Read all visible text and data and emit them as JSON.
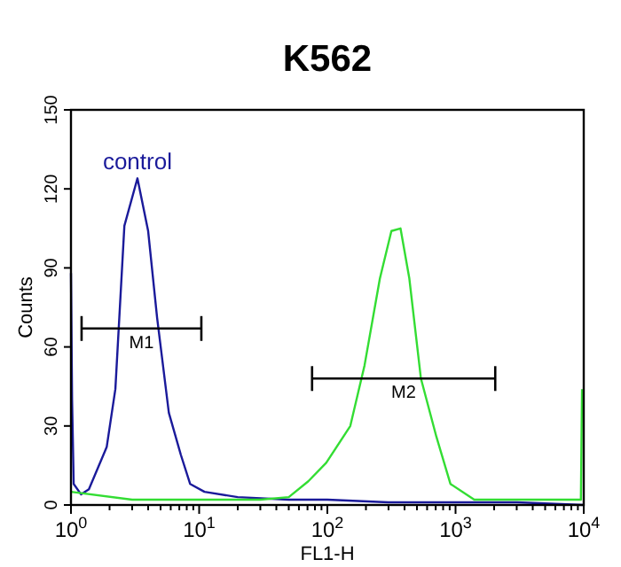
{
  "chart_data": {
    "type": "line",
    "title": "K562",
    "xlabel": "FL1-H",
    "ylabel": "Counts",
    "log": "x",
    "xlim": [
      1,
      10000
    ],
    "ylim": [
      0,
      150
    ],
    "xticks": [
      {
        "value": 1,
        "label": "10$^{0}$"
      },
      {
        "value": 2,
        "label": null
      },
      {
        "value": 3,
        "label": null
      },
      {
        "value": 4,
        "label": null
      },
      {
        "value": 5,
        "label": null
      },
      {
        "value": 6,
        "label": null
      },
      {
        "value": 7,
        "label": null
      },
      {
        "value": 8,
        "label": null
      },
      {
        "value": 9,
        "label": null
      },
      {
        "value": 10,
        "label": "10$^{1}$"
      },
      {
        "value": 20,
        "label": null
      },
      {
        "value": 30,
        "label": null
      },
      {
        "value": 40,
        "label": null
      },
      {
        "value": 50,
        "label": null
      },
      {
        "value": 60,
        "label": null
      },
      {
        "value": 70,
        "label": null
      },
      {
        "value": 80,
        "label": null
      },
      {
        "value": 90,
        "label": null
      },
      {
        "value": 100,
        "label": "10$^{2}$"
      },
      {
        "value": 200,
        "label": null
      },
      {
        "value": 300,
        "label": null
      },
      {
        "value": 400,
        "label": null
      },
      {
        "value": 500,
        "label": null
      },
      {
        "value": 600,
        "label": null
      },
      {
        "value": 700,
        "label": null
      },
      {
        "value": 800,
        "label": null
      },
      {
        "value": 900,
        "label": null
      },
      {
        "value": 1000,
        "label": "10$^{3}$"
      },
      {
        "value": 2000,
        "label": null
      },
      {
        "value": 3000,
        "label": null
      },
      {
        "value": 4000,
        "label": null
      },
      {
        "value": 5000,
        "label": null
      },
      {
        "value": 6000,
        "label": null
      },
      {
        "value": 7000,
        "label": null
      },
      {
        "value": 8000,
        "label": null
      },
      {
        "value": 9000,
        "label": null
      },
      {
        "value": 10000,
        "label": "10$^{4}$"
      }
    ],
    "yticks": [
      0,
      30,
      60,
      90,
      120,
      150
    ],
    "grid": false,
    "marker": "none",
    "line_style": "solid",
    "series": [
      {
        "name": "control",
        "color": "#1a1a9a",
        "x": [
          1,
          1.02,
          1.05,
          1.2,
          1.38,
          1.9,
          2.22,
          2.61,
          3.3,
          4.0,
          4.7,
          5.8,
          7.2,
          8.5,
          11,
          20,
          50,
          100,
          300,
          1000,
          3000,
          10000
        ],
        "values": [
          88,
          40,
          8,
          4,
          6,
          22,
          44,
          106,
          124,
          104,
          71,
          35,
          19,
          8,
          5,
          3,
          2,
          2,
          1,
          1,
          1,
          0
        ]
      },
      {
        "color": "#33dd33",
        "x": [
          1,
          3,
          10,
          30,
          50,
          71,
          98,
          151,
          195,
          257,
          316,
          372,
          436,
          537,
          708,
          912,
          1400,
          3000,
          9500,
          9700
        ],
        "values": [
          5,
          2,
          2,
          2,
          3,
          9,
          16,
          30,
          53,
          86,
          104,
          105,
          86,
          48,
          26,
          8,
          2,
          2,
          2,
          44
        ]
      },
      {
        "name": "M1",
        "color": "#000000",
        "x": [
          1.21,
          10.4
        ],
        "values": [
          67,
          67
        ]
      },
      {
        "name": "M2",
        "color": "#000000",
        "x": [
          76,
          2040
        ],
        "values": [
          48,
          48
        ]
      }
    ]
  }
}
